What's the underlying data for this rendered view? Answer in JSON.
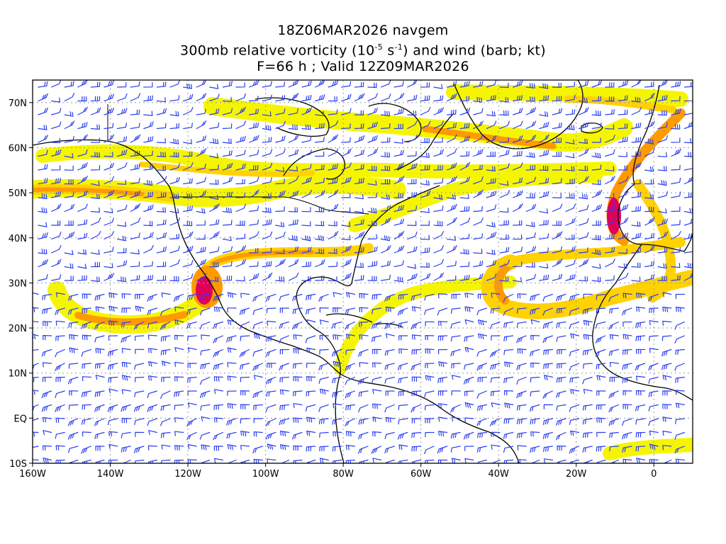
{
  "title": {
    "line1": "18Z06MAR2026 navgem",
    "line2_prefix": "300mb relative vorticity (10",
    "line2_exp1": "-5",
    "line2_mid": " s",
    "line2_exp2": "-1",
    "line2_suffix": ") and wind (barb; kt)",
    "line3": "F=66 h ; Valid 12Z09MAR2026"
  },
  "map": {
    "lat_range": [
      -10,
      75
    ],
    "lon_range": [
      -160,
      10
    ],
    "lat_ticks": [
      "70N",
      "60N",
      "50N",
      "40N",
      "30N",
      "20N",
      "10N",
      "EQ",
      "10S"
    ],
    "lon_ticks": [
      "160W",
      "140W",
      "120W",
      "100W",
      "80W",
      "60W",
      "40W",
      "20W",
      "0"
    ],
    "colors": {
      "vort_light": "#f5f500",
      "vort_mid": "#ffd200",
      "vort_orange": "#ff9a00",
      "vort_red": "#e03010",
      "vort_max": "#e0005a",
      "barb": "#2a3ff0",
      "coast": "#000000",
      "grid": "#9a9a9a"
    }
  }
}
